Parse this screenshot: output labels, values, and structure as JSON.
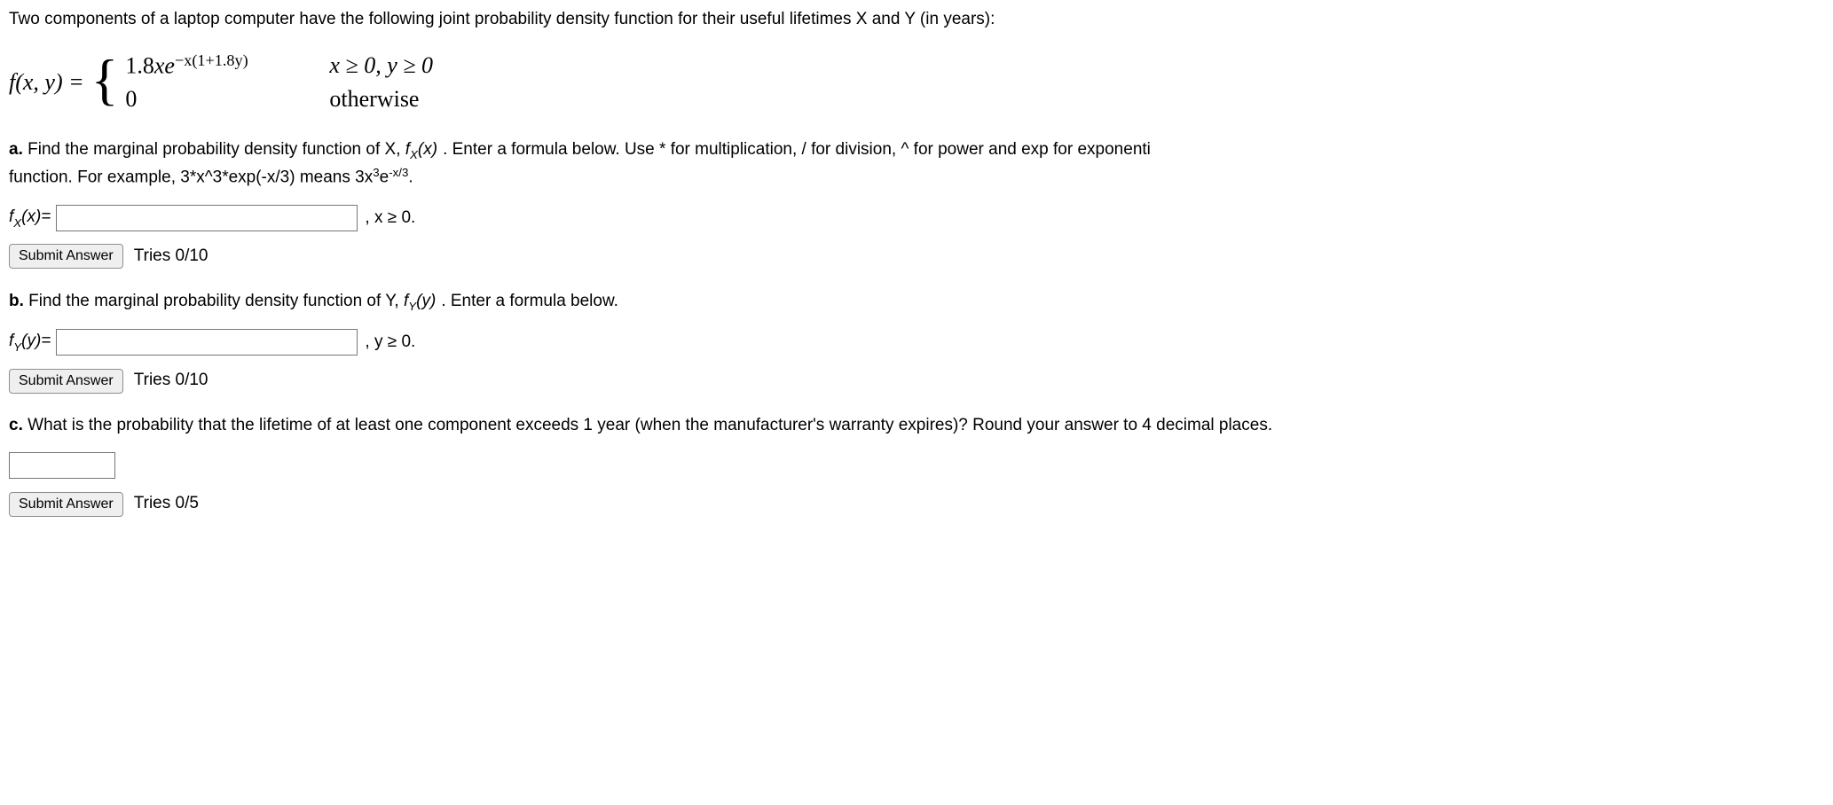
{
  "intro": "Two components of a laptop computer have the following joint probability density function for their useful lifetimes X and Y (in years):",
  "pdf": {
    "lhs": "f(x, y) = ",
    "expr_coef": "1.8",
    "expr_var": "xe",
    "expr_exp": "−x(1+1.8y)",
    "cond1_pre": "x ≥ 0,  y ≥ 0",
    "zero": "0",
    "cond2": "otherwise"
  },
  "partA": {
    "label_a": "a.",
    "text1": " Find the marginal probability density function of X, ",
    "fx": "f",
    "fx_sub": "X",
    "fx_arg": "(x)",
    "text2": ". Enter a formula below. Use * for multiplication, / for division, ^ for power and exp for exponenti",
    "text_line2a": "function. For example, 3*x^3*exp(-x/3) means 3x",
    "text_line2_sup": "3",
    "text_line2b": "e",
    "text_line2_sup2": "-x/3",
    "text_line2c": ".",
    "answer_label_f": "f",
    "answer_label_sub": "X",
    "answer_label_arg": "(x)= ",
    "after_input": ",    x ≥ 0.",
    "submit": "Submit Answer",
    "tries": "Tries 0/10"
  },
  "partB": {
    "label_b": "b.",
    "text1": " Find the marginal probability density function of Y, ",
    "fy": "f",
    "fy_sub": "Y",
    "fy_arg": "(y)",
    "text2": ". Enter a formula below.",
    "answer_label_f": "f",
    "answer_label_sub": "Y",
    "answer_label_arg": "(y)= ",
    "after_input": ",    y ≥ 0.",
    "submit": "Submit Answer",
    "tries": "Tries 0/10"
  },
  "partC": {
    "label_c": "c.",
    "text1": " What is the probability that the lifetime of at least one component exceeds 1 year (when the manufacturer's warranty expires)? Round your answer to 4 decimal places.",
    "submit": "Submit Answer",
    "tries": "Tries 0/5"
  }
}
